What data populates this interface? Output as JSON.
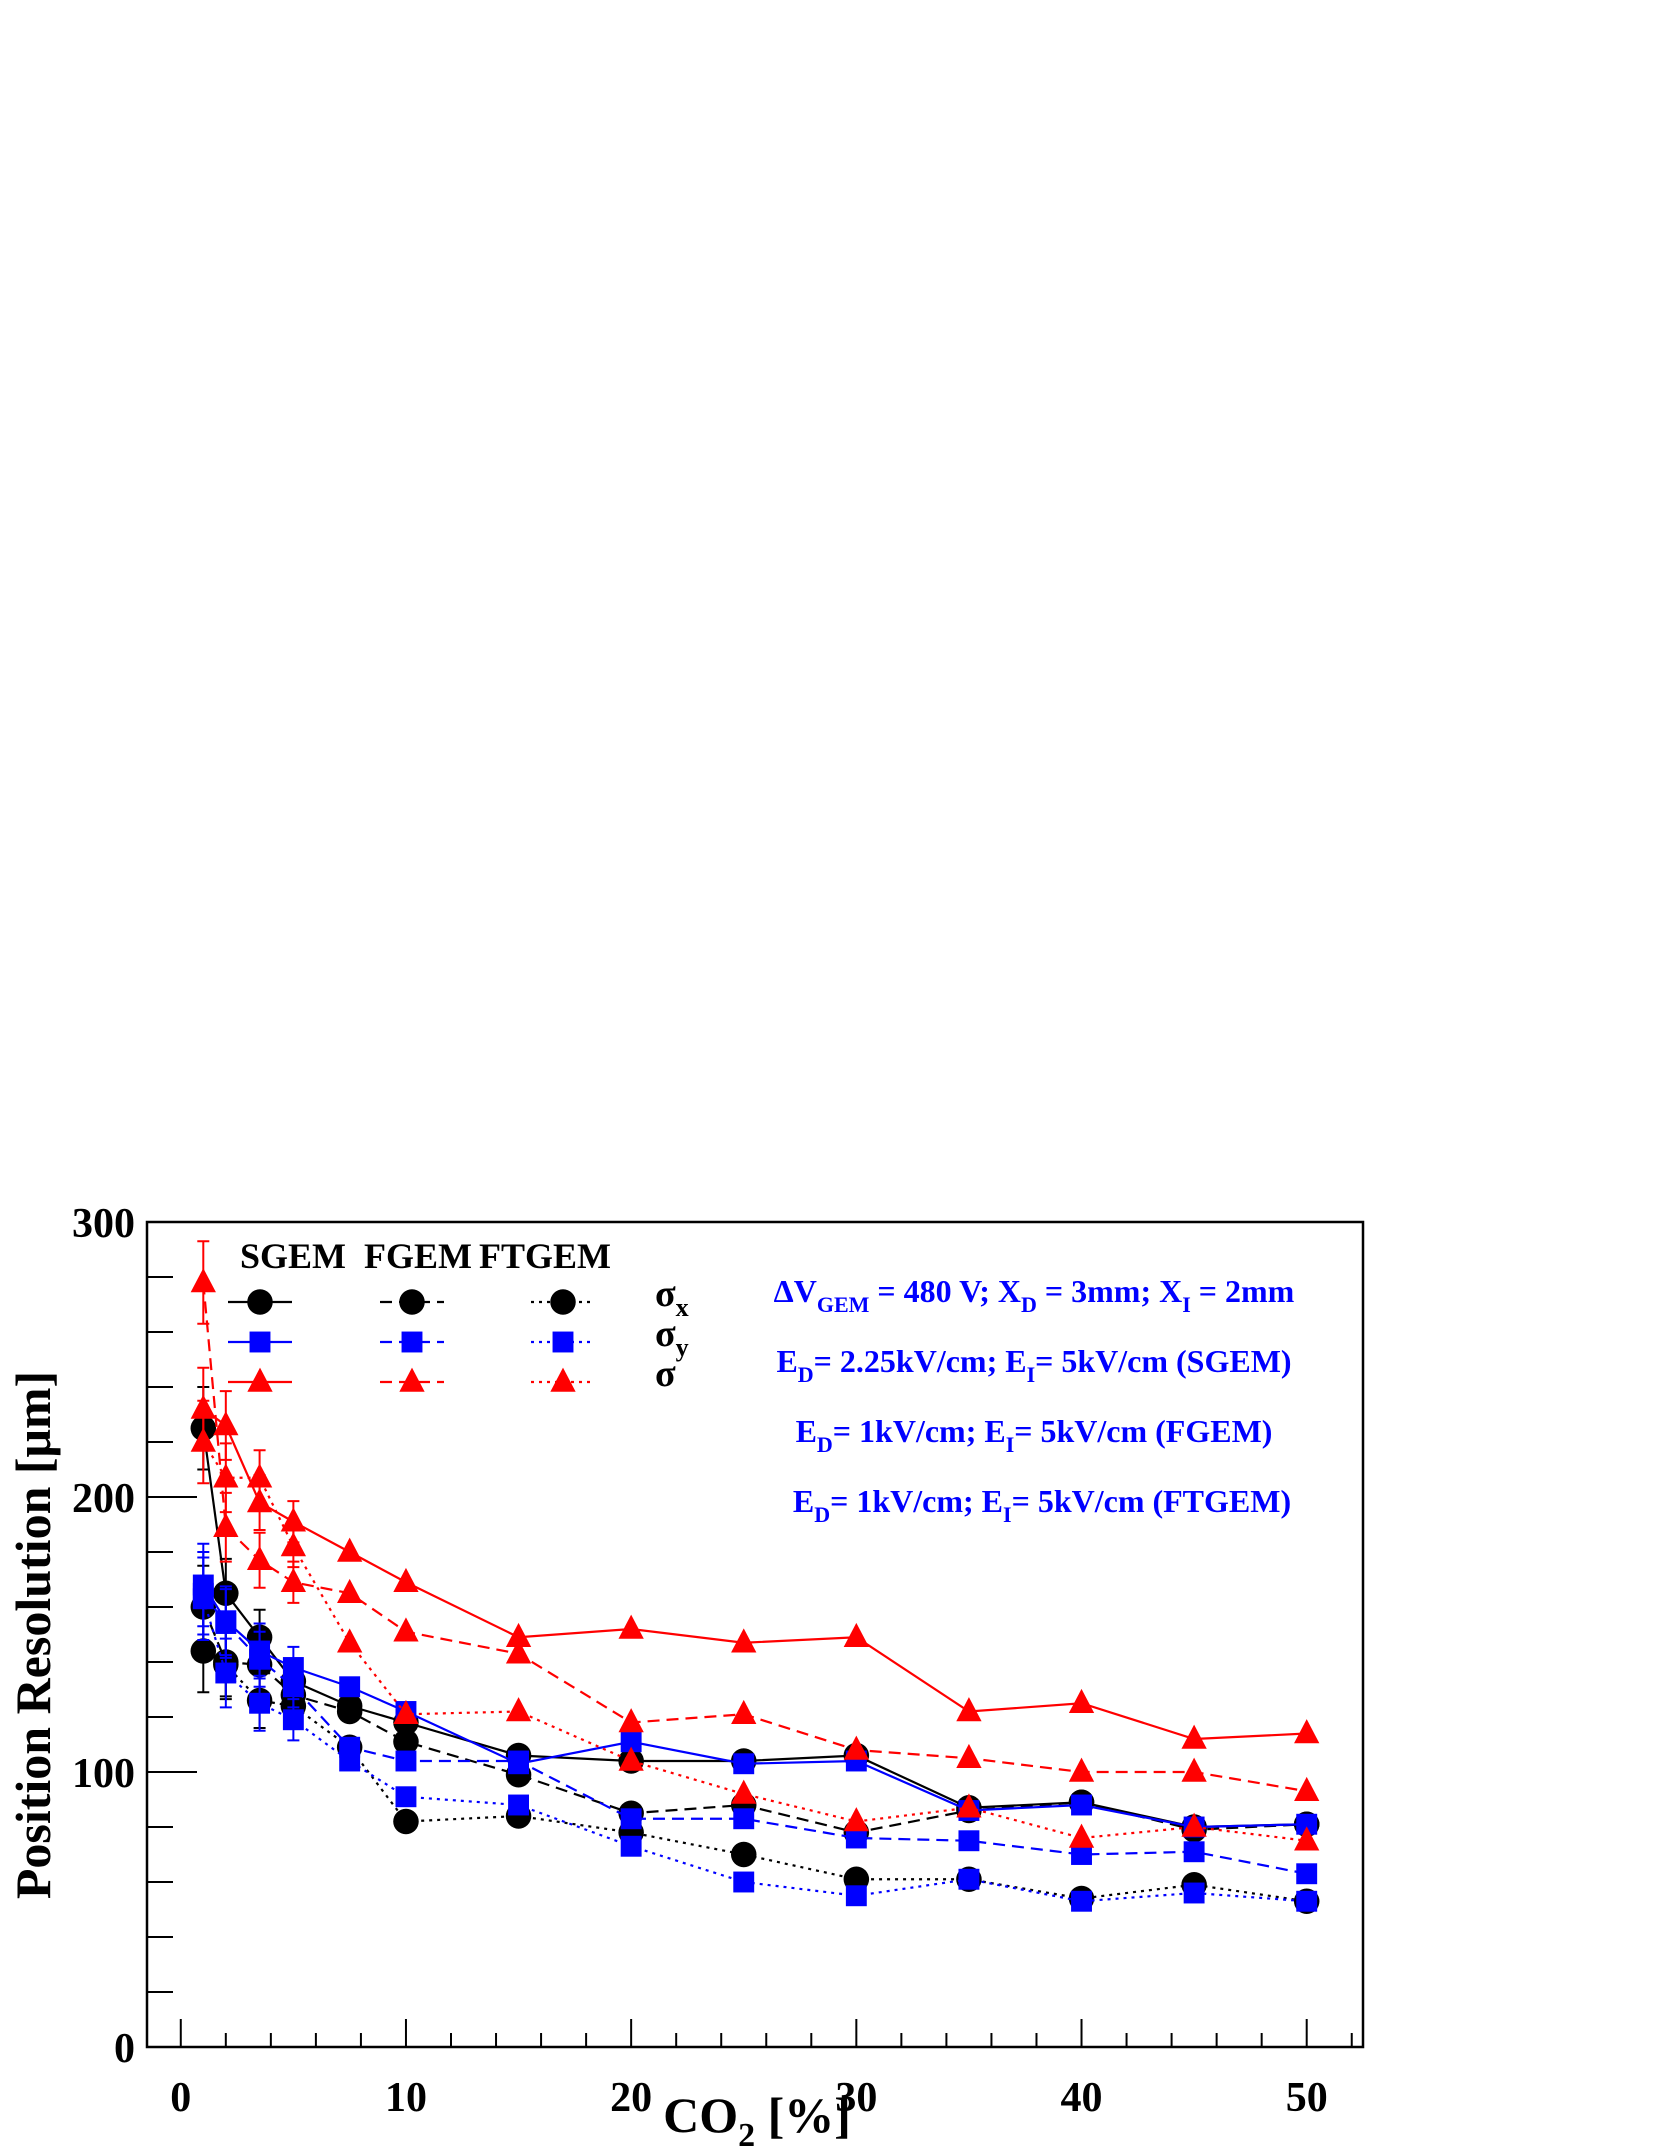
{
  "chart_data": {
    "type": "line",
    "xlabel": {
      "base": "CO",
      "sub": "2",
      "suffix": " [%]"
    },
    "ylabel": "Position Resolution [μm]",
    "xlim": [
      -1.5,
      52.5
    ],
    "ylim": [
      0,
      300
    ],
    "xticks": [
      0,
      10,
      20,
      30,
      40,
      50
    ],
    "yticks": [
      0,
      100,
      200,
      300
    ],
    "xtick_labels": [
      "0",
      "10",
      "20",
      "30",
      "40",
      "50"
    ],
    "ytick_labels": [
      "0",
      "100",
      "200",
      "300"
    ],
    "x": [
      1,
      2,
      3.5,
      5,
      7.5,
      10,
      15,
      20,
      25,
      30,
      35,
      40,
      45,
      50
    ],
    "series": [
      {
        "detector": "SGEM",
        "component": "sigma_x",
        "color": "#000000",
        "marker": "circle",
        "dash": "solid",
        "values": [
          225,
          165,
          149,
          133,
          124,
          118,
          106,
          104,
          104,
          106,
          87,
          89,
          80,
          81
        ]
      },
      {
        "detector": "FGEM",
        "component": "sigma_x",
        "color": "#000000",
        "marker": "circle",
        "dash": "dashed",
        "values": [
          160,
          140,
          139,
          128,
          122,
          111,
          99,
          85,
          88,
          78,
          86,
          89,
          79,
          81
        ]
      },
      {
        "detector": "FTGEM",
        "component": "sigma_x",
        "color": "#000000",
        "marker": "circle",
        "dash": "dotted",
        "values": [
          144,
          139,
          126,
          124,
          109,
          82,
          84,
          78,
          70,
          61,
          61,
          54,
          59,
          53
        ]
      },
      {
        "detector": "SGEM",
        "component": "sigma_y",
        "color": "#0000ff",
        "marker": "square",
        "dash": "solid",
        "values": [
          168,
          155,
          144,
          138,
          131,
          122,
          103,
          111,
          103,
          104,
          86,
          88,
          80,
          81
        ]
      },
      {
        "detector": "FGEM",
        "component": "sigma_y",
        "color": "#0000ff",
        "marker": "square",
        "dash": "dashed",
        "values": [
          165,
          154,
          141,
          131,
          109,
          104,
          104,
          83,
          83,
          76,
          75,
          70,
          71,
          63
        ]
      },
      {
        "detector": "FTGEM",
        "component": "sigma_y",
        "color": "#0000ff",
        "marker": "square",
        "dash": "dotted",
        "values": [
          163,
          136,
          125,
          119,
          104,
          91,
          88,
          73,
          60,
          55,
          61,
          53,
          56,
          53
        ]
      },
      {
        "detector": "SGEM",
        "component": "sigma",
        "color": "#ff0000",
        "marker": "triangle",
        "dash": "solid",
        "values": [
          232,
          226,
          198,
          191,
          180,
          169,
          149,
          152,
          147,
          149,
          122,
          125,
          112,
          114
        ]
      },
      {
        "detector": "FGEM",
        "component": "sigma",
        "color": "#ff0000",
        "marker": "triangle",
        "dash": "dashed",
        "values": [
          278,
          189,
          177,
          169,
          165,
          151,
          143,
          118,
          121,
          108,
          105,
          100,
          100,
          93
        ]
      },
      {
        "detector": "FTGEM",
        "component": "sigma",
        "color": "#ff0000",
        "marker": "triangle",
        "dash": "dotted",
        "values": [
          220,
          207,
          207,
          182,
          147,
          121,
          122,
          104,
          92,
          82,
          87,
          76,
          80,
          75
        ]
      }
    ],
    "legend": {
      "placement": "top-left",
      "column_headers": [
        "SGEM",
        "FGEM",
        "FTGEM"
      ],
      "rows": [
        {
          "symbol": "σ",
          "sub": "x"
        },
        {
          "symbol": "σ",
          "sub": "y"
        },
        {
          "symbol": "σ",
          "sub": ""
        }
      ]
    },
    "annotation_color": "#0000ff",
    "annotations": [
      {
        "parts": [
          [
            "ΔV",
            ""
          ],
          [
            "GEM",
            "sub"
          ],
          [
            " = 480 V; X",
            ""
          ],
          [
            "D",
            "sub"
          ],
          [
            " = 3mm; X",
            ""
          ],
          [
            "I",
            "sub"
          ],
          [
            " = 2mm",
            ""
          ]
        ]
      },
      {
        "parts": [
          [
            "E",
            ""
          ],
          [
            "D",
            "sub"
          ],
          [
            "= 2.25kV/cm; E",
            ""
          ],
          [
            "I",
            "sub"
          ],
          [
            "= 5kV/cm (SGEM)",
            ""
          ]
        ]
      },
      {
        "parts": [
          [
            "E",
            ""
          ],
          [
            "D",
            "sub"
          ],
          [
            "= 1kV/cm; E",
            ""
          ],
          [
            "I",
            "sub"
          ],
          [
            "= 5kV/cm (FGEM)",
            ""
          ]
        ]
      },
      {
        "parts": [
          [
            "E",
            ""
          ],
          [
            "D",
            "sub"
          ],
          [
            "= 1kV/cm; E",
            ""
          ],
          [
            "I",
            "sub"
          ],
          [
            "= 5kV/cm (FTGEM)",
            ""
          ]
        ]
      }
    ]
  }
}
